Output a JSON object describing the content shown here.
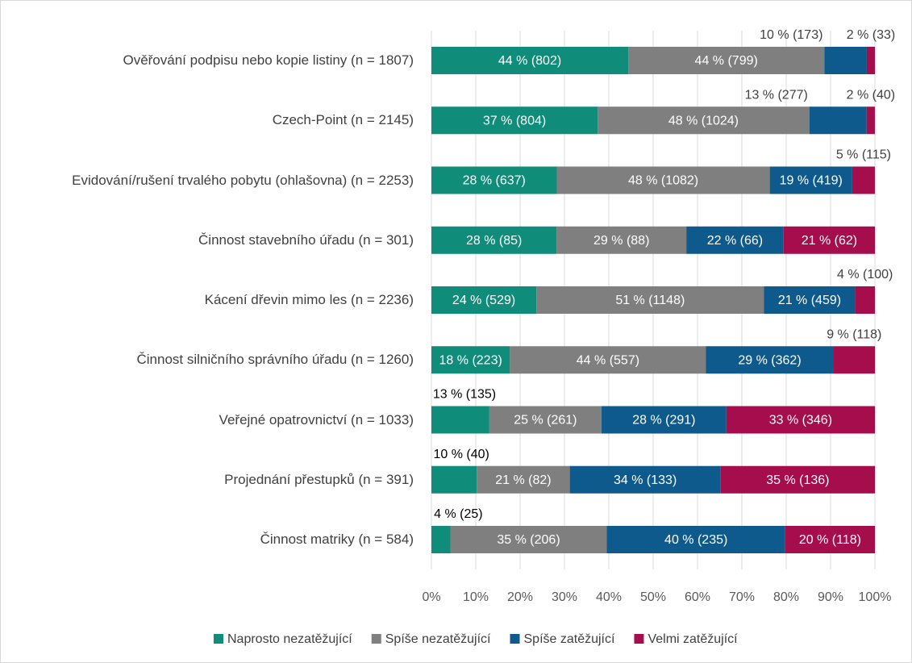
{
  "chart_data": {
    "type": "stacked_bar_horizontal",
    "categories": [
      "Ověřování podpisu nebo kopie listiny (n = 1807)",
      "Czech-Point (n = 2145)",
      "Evidování/rušení trvalého pobytu (ohlašovna) (n = 2253)",
      "Činnost stavebního úřadu (n = 301)",
      "Kácení dřevin mimo les (n = 2236)",
      "Činnost silničního správního úřadu (n = 1260)",
      "Veřejné opatrovnictví (n = 1033)",
      "Projednání přestupků (n = 391)",
      "Činnost matriky (n = 584)"
    ],
    "series": [
      {
        "name": "Naprosto nezatěžující",
        "color": "#0f8c7a",
        "values": [
          44.38,
          37.48,
          28.27,
          28.24,
          23.66,
          17.7,
          13.07,
          10.23,
          4.28
        ],
        "value_labels": [
          "44 % (802)",
          "37 % (804)",
          "28 % (637)",
          "28 % (85)",
          "24 % (529)",
          "18 % (223)",
          "13 % (135)",
          "10 % (40)",
          "4 % (25)"
        ]
      },
      {
        "name": "Spíše nezatěžující",
        "color": "#7f7f7f",
        "values": [
          44.22,
          47.74,
          48.02,
          29.24,
          51.34,
          44.21,
          25.27,
          20.97,
          35.27
        ],
        "value_labels": [
          "44 % (799)",
          "48 % (1024)",
          "48 % (1082)",
          "29 % (88)",
          "51 % (1148)",
          "44 % (557)",
          "25 % (261)",
          "21 % (82)",
          "35 % (206)"
        ]
      },
      {
        "name": "Spíše zatěžující",
        "color": "#0e5a8c",
        "values": [
          9.57,
          12.91,
          18.6,
          21.93,
          20.53,
          28.73,
          28.17,
          34.02,
          40.24
        ],
        "value_labels": [
          "10 % (173)",
          "13 % (277)",
          "19 % (419)",
          "22 % (66)",
          "21 % (459)",
          "29 % (362)",
          "28 % (291)",
          "34 % (133)",
          "40 % (235)"
        ]
      },
      {
        "name": "Velmi zatěžující",
        "color": "#a60d4c",
        "values": [
          1.83,
          1.86,
          5.1,
          20.6,
          4.47,
          9.37,
          33.49,
          34.78,
          20.21
        ],
        "value_labels": [
          "2 % (33)",
          "2 % (40)",
          "5 % (115)",
          "21 % (62)",
          "4 % (100)",
          "9 % (118)",
          "33 % (346)",
          "35 % (136)",
          "20 % (118)"
        ]
      }
    ],
    "xlim": [
      0,
      100
    ],
    "xticks": [
      {
        "value": 0,
        "label": "0%"
      },
      {
        "value": 10,
        "label": "10%"
      },
      {
        "value": 20,
        "label": "20%"
      },
      {
        "value": 30,
        "label": "30%"
      },
      {
        "value": 40,
        "label": "40%"
      },
      {
        "value": 50,
        "label": "50%"
      },
      {
        "value": 60,
        "label": "60%"
      },
      {
        "value": 70,
        "label": "70%"
      },
      {
        "value": 80,
        "label": "80%"
      },
      {
        "value": 90,
        "label": "90%"
      },
      {
        "value": 100,
        "label": "100%"
      }
    ],
    "grid": true,
    "legend": "bottom"
  }
}
